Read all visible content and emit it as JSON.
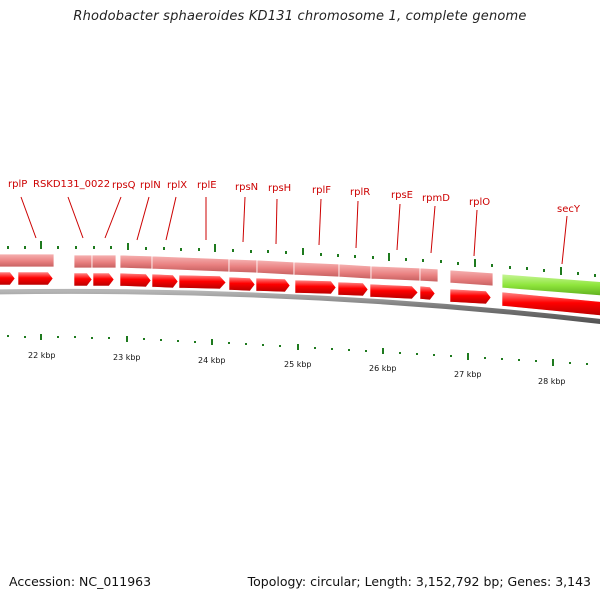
{
  "title": "Rhodobacter sphaeroides KD131 chromosome 1, complete genome",
  "footer": {
    "accession": "Accession: NC_011963",
    "summary": "Topology: circular; Length: 3,152,792 bp; Genes: 3,143"
  },
  "colors": {
    "gene": "#ff0000",
    "gene_light": "#ea8080",
    "cds_highlight": "#8fe63c",
    "label": "#cc0000",
    "tick": "#1e7a1e",
    "backbone": "#808080"
  },
  "gene_labels": [
    "rplP",
    "RSKD131_0022",
    "rpsQ",
    "rplN",
    "rplX",
    "rplE",
    "rpsN",
    "rpsH",
    "rplF",
    "rplR",
    "rpsE",
    "rpmD",
    "rplO",
    "secY"
  ],
  "scale_labels": [
    "22 kbp",
    "23 kbp",
    "24 kbp",
    "25 kbp",
    "26 kbp",
    "27 kbp",
    "28 kbp"
  ],
  "highlighted_gene": "secY"
}
